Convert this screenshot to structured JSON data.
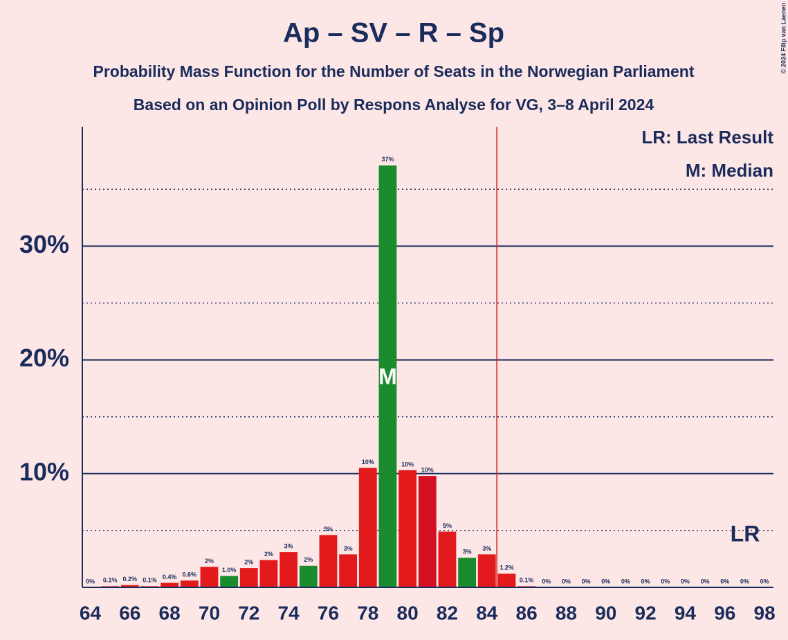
{
  "chart_data": {
    "type": "bar",
    "title": "Ap – SV – R – Sp",
    "subtitles": [
      "Probability Mass Function for the Number of Seats in the Norwegian Parliament",
      "Based on an Opinion Poll by Respons Analyse for VG, 3–8 April 2024"
    ],
    "copyright": "© 2024 Filip van Laenen",
    "legend": [
      "LR: Last Result",
      "M: Median"
    ],
    "x": [
      64,
      65,
      66,
      67,
      68,
      69,
      70,
      71,
      72,
      73,
      74,
      75,
      76,
      77,
      78,
      79,
      80,
      81,
      82,
      83,
      84,
      85,
      86,
      87,
      88,
      89,
      90,
      91,
      92,
      93,
      94,
      95,
      96,
      97,
      98
    ],
    "values": [
      0,
      0.1,
      0.2,
      0.1,
      0.4,
      0.6,
      1.8,
      1.0,
      1.7,
      2.4,
      3.1,
      1.9,
      4.6,
      2.9,
      10.5,
      37.1,
      10.3,
      9.8,
      4.9,
      2.6,
      2.9,
      1.2,
      0.1,
      0,
      0,
      0,
      0,
      0,
      0,
      0,
      0,
      0,
      0,
      0,
      0
    ],
    "value_labels": [
      "0%",
      "0.1%",
      "0.2%",
      "0.1%",
      "0.4%",
      "0.6%",
      "2%",
      "1.0%",
      "2%",
      "2%",
      "3%",
      "2%",
      "5%",
      "3%",
      "10%",
      "37%",
      "10%",
      "10%",
      "5%",
      "3%",
      "3%",
      "1.2%",
      "0.1%",
      "0%",
      "0%",
      "0%",
      "0%",
      "0%",
      "0%",
      "0%",
      "0%",
      "0%",
      "0%",
      "0%",
      "0%"
    ],
    "colors": [
      "#e31a1c",
      "#e31a1c",
      "#e31a1c",
      "#e31a1c",
      "#e31a1c",
      "#e31a1c",
      "#e31a1c",
      "#1a8c2e",
      "#e31a1c",
      "#e31a1c",
      "#e31a1c",
      "#1a8c2e",
      "#e31a1c",
      "#e31a1c",
      "#e31a1c",
      "#1a8c2e",
      "#e31a1c",
      "#d40f22",
      "#e31a1c",
      "#1a8c2e",
      "#e31a1c",
      "#e31a1c",
      "#e31a1c",
      "#e31a1c",
      "#e31a1c",
      "#e31a1c",
      "#e31a1c",
      "#e31a1c",
      "#e31a1c",
      "#e31a1c",
      "#e31a1c",
      "#e31a1c",
      "#e31a1c",
      "#e31a1c",
      "#e31a1c"
    ],
    "xlim": [
      63.6,
      98.45
    ],
    "xticks": [
      64,
      66,
      68,
      70,
      72,
      74,
      76,
      78,
      80,
      82,
      84,
      86,
      88,
      90,
      92,
      94,
      96,
      98
    ],
    "ylim": [
      0,
      40.5
    ],
    "yticks": [
      {
        "value": 10,
        "label": "10%"
      },
      {
        "value": 20,
        "label": "20%"
      },
      {
        "value": 30,
        "label": "30%"
      }
    ],
    "dotted_gridlines": [
      5,
      15,
      25,
      35
    ],
    "median": 79,
    "median_label": "M",
    "last_result_x": 84.5,
    "last_result_label": "LR",
    "last_result_color": "#e31a1c"
  }
}
